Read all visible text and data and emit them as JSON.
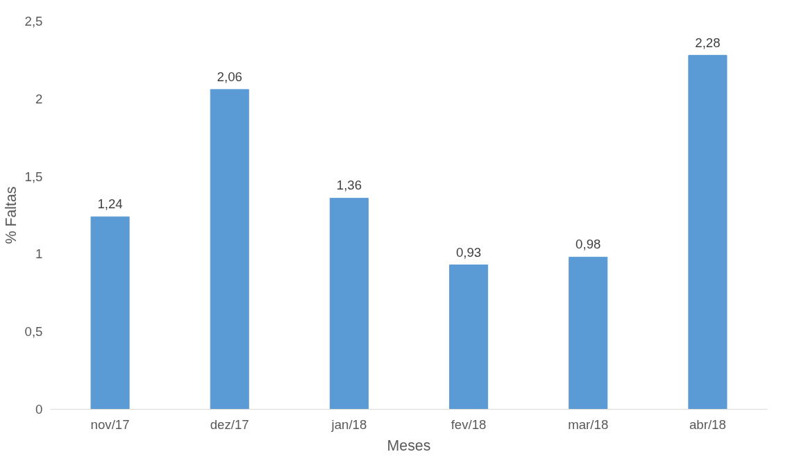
{
  "chart_data": {
    "type": "bar",
    "xlabel": "Meses",
    "ylabel": "% Faltas",
    "categories": [
      "nov/17",
      "dez/17",
      "jan/18",
      "fev/18",
      "mar/18",
      "abr/18"
    ],
    "values": [
      1.24,
      2.06,
      1.36,
      0.93,
      0.98,
      2.28
    ],
    "value_labels": [
      "1,24",
      "2,06",
      "1,36",
      "0,93",
      "0,98",
      "2,28"
    ],
    "color": "#5b9bd5",
    "ylim": [
      0,
      2.5
    ],
    "yticks": [
      0,
      {
        "value": 0.5,
        "label": "0,5"
      },
      1,
      {
        "value": 1.5,
        "label": "1,5"
      },
      2,
      {
        "value": 2.5,
        "label": "2,5"
      }
    ],
    "grid": false
  }
}
